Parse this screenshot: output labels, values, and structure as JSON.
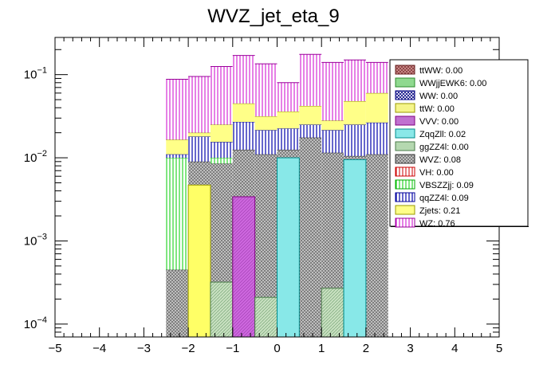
{
  "chart_data": {
    "type": "bar",
    "subtype": "stacked-histogram",
    "title": "WVZ_jet_eta_9",
    "xlabel": "",
    "ylabel": "",
    "xlim": [
      -5,
      5
    ],
    "ylim": [
      7e-05,
      0.28
    ],
    "yscale": "log",
    "x_ticks": [
      "−5",
      "−4",
      "−3",
      "−2",
      "−1",
      "0",
      "1",
      "2",
      "3",
      "4",
      "5"
    ],
    "y_ticks": [
      {
        "value": 0.0001,
        "base": "10",
        "exp": "−4"
      },
      {
        "value": 0.001,
        "base": "10",
        "exp": "−3"
      },
      {
        "value": 0.01,
        "base": "10",
        "exp": "−2"
      },
      {
        "value": 0.1,
        "base": "10",
        "exp": "−1"
      }
    ],
    "bin_edges": [
      -2.5,
      -2.0,
      -1.5,
      -1.0,
      -0.5,
      0.0,
      0.5,
      1.0,
      1.5,
      2.0,
      2.5
    ],
    "stacked_tops": [
      {
        "name": "WVZ",
        "values": [
          0.00045,
          0.009,
          0.0085,
          0.0125,
          0.011,
          0.0125,
          0.0175,
          0.0115,
          0.0105,
          0.011
        ]
      },
      {
        "name": "VBSZZjj",
        "values": [
          0.01,
          0.009,
          0.01,
          0.012,
          0.01,
          0.0125,
          0.0175,
          0.0115,
          0.0105,
          0.011
        ]
      },
      {
        "name": "qqZZ4l",
        "values": [
          0.011,
          0.018,
          0.0155,
          0.027,
          0.0215,
          0.0225,
          0.025,
          0.0215,
          0.025,
          0.0265
        ]
      },
      {
        "name": "Zjets",
        "values": [
          0.0165,
          0.02,
          0.025,
          0.045,
          0.0315,
          0.036,
          0.042,
          0.028,
          0.048,
          0.06
        ]
      },
      {
        "name": "WZ",
        "values": [
          0.088,
          0.095,
          0.125,
          0.17,
          0.135,
          0.08,
          0.175,
          0.14,
          0.15,
          0.14
        ]
      }
    ],
    "overlay_bars": [
      {
        "name": "Zjets",
        "bin": [
          -2.0,
          -1.5
        ],
        "value": 0.0047
      },
      {
        "name": "ggZZ4l",
        "bin": [
          -1.5,
          -1.0
        ],
        "value": 0.00032
      },
      {
        "name": "VVV",
        "bin": [
          -1.0,
          -0.5
        ],
        "value": 0.0034
      },
      {
        "name": "ggZZ4l",
        "bin": [
          -0.5,
          0.0
        ],
        "value": 0.00021
      },
      {
        "name": "ZqqZll",
        "bin": [
          0.0,
          0.5
        ],
        "value": 0.01
      },
      {
        "name": "ggZZ4l",
        "bin": [
          1.0,
          1.5
        ],
        "value": 0.00027
      },
      {
        "name": "ZqqZll",
        "bin": [
          1.5,
          2.0
        ],
        "value": 0.0095
      }
    ],
    "legend": {
      "position": "top-right",
      "entries": [
        {
          "label": "ttWW: 0.00",
          "fill": "#b06a6a",
          "border": "#6a2020",
          "pattern": "crosshatch"
        },
        {
          "label": "WWjjEWK6: 0.00",
          "fill": "#8fd98f",
          "border": "#2e8b2e",
          "pattern": "solid"
        },
        {
          "label": "WW: 0.00",
          "fill": "#ffffff",
          "border": "#000080",
          "pattern": "crosshatch-dark"
        },
        {
          "label": "ttW: 0.00",
          "fill": "#f5f58a",
          "border": "#999900",
          "pattern": "solid"
        },
        {
          "label": "VVV: 0.00",
          "fill": "#c070d0",
          "border": "#800080",
          "pattern": "solid"
        },
        {
          "label": "ZqqZll: 0.02",
          "fill": "#8ae8e8",
          "border": "#008b8b",
          "pattern": "solid"
        },
        {
          "label": "ggZZ4l: 0.00",
          "fill": "#b5d8b0",
          "border": "#4a7a4a",
          "pattern": "solid"
        },
        {
          "label": "WVZ: 0.08",
          "fill": "#a0a0a0",
          "border": "#333333",
          "pattern": "crosshatch"
        },
        {
          "label": "VH: 0.00",
          "fill": "#ffffff",
          "border": "#cc0000",
          "pattern": "vlines-red"
        },
        {
          "label": "VBSZZjj: 0.09",
          "fill": "#ffffff",
          "border": "#00aa00",
          "pattern": "hlines-green"
        },
        {
          "label": "qqZZ4l: 0.09",
          "fill": "#ffffff",
          "border": "#000099",
          "pattern": "vlines-blue"
        },
        {
          "label": "Zjets: 0.21",
          "fill": "#ffff88",
          "border": "#999900",
          "pattern": "solid"
        },
        {
          "label": "WZ: 0.76",
          "fill": "#ffffff",
          "border": "#990099",
          "pattern": "vlines-magenta"
        }
      ]
    },
    "colors": {
      "WZ": "#cc00cc",
      "Zjets": "#ffff66",
      "qqZZ4l": "#0000aa",
      "VBSZZjj": "#00cc00",
      "WVZ": "#888888",
      "ZqqZll": "#66e0e0",
      "ggZZ4l": "#aacc99",
      "VVV": "#cc66cc"
    }
  }
}
